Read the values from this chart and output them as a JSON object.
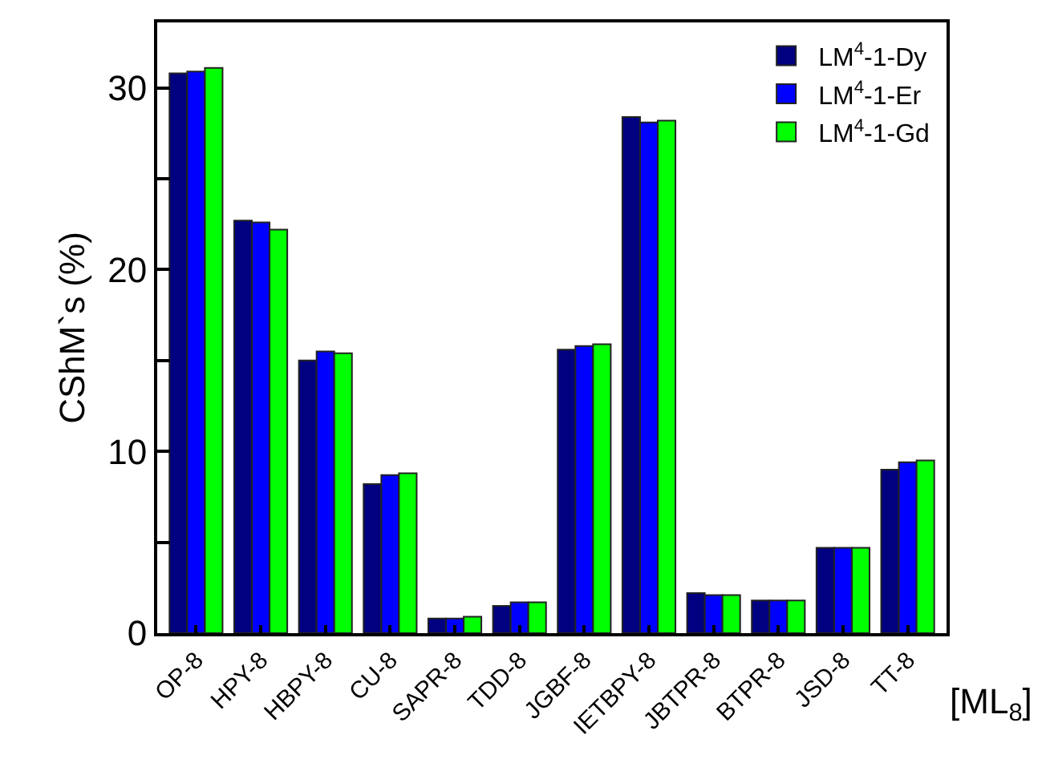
{
  "chart_data": {
    "type": "bar",
    "ylabel": "CShM`s (%)",
    "xlabel": "[ML$_{8}$]",
    "categories": [
      "OP-8",
      "HPY-8",
      "HBPY-8",
      "CU-8",
      "SAPR-8",
      "TDD-8",
      "JGBF-8",
      "IETBPY-8",
      "JBTPR-8",
      "BTPR-8",
      "JSD-8",
      "TT-8"
    ],
    "series": [
      {
        "name": "LM$^{4}$-1-Dy",
        "color": "#000080",
        "values": [
          30.8,
          22.7,
          15.0,
          8.2,
          0.8,
          1.5,
          15.6,
          28.4,
          2.2,
          1.8,
          4.7,
          9.0
        ]
      },
      {
        "name": "LM$^{4}$-1-Er",
        "color": "#0000ff",
        "values": [
          30.9,
          22.6,
          15.5,
          8.7,
          0.8,
          1.7,
          15.8,
          28.1,
          2.1,
          1.8,
          4.7,
          9.4
        ]
      },
      {
        "name": "LM$^{4}$-1-Gd",
        "color": "#00ff00",
        "values": [
          31.1,
          22.2,
          15.4,
          8.8,
          0.9,
          1.7,
          15.9,
          28.2,
          2.1,
          1.8,
          4.7,
          9.5
        ]
      }
    ],
    "ylim": [
      0,
      33.6
    ],
    "yticks": [
      0,
      {
        "value": 5,
        "label": null
      },
      10,
      {
        "value": 15,
        "label": null
      },
      20,
      {
        "value": 25,
        "label": null
      },
      30
    ],
    "legend": "top right"
  }
}
